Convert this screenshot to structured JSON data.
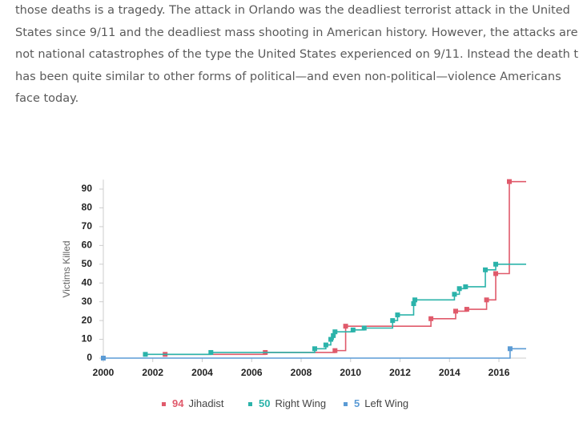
{
  "paragraph": [
    "those deaths is a tragedy. The attack in Orlando was the deadliest terrorist attack in the United",
    "States since 9/11 and the deadliest mass shooting in American history. However, the attacks are",
    "not national catastrophes of the type the United States experienced on 9/11. Instead the death toll",
    "has been quite similar to other forms of political—and even non-political—violence Americans",
    "face today."
  ],
  "chart_data": {
    "type": "step",
    "y_label": "Victims Killed",
    "xlim": [
      2000,
      2017.1
    ],
    "xticks": [
      2000,
      2002,
      2004,
      2006,
      2008,
      2010,
      2012,
      2014,
      2016
    ],
    "ylim": [
      0,
      95
    ],
    "yticks": [
      0,
      10,
      20,
      30,
      40,
      50,
      60,
      70,
      80,
      90
    ],
    "series": [
      {
        "name": "Jihadist",
        "total": 94,
        "color": "#e05a6b",
        "x": [
          2002.5,
          2006.55,
          2009.37,
          2009.8,
          2013.25,
          2014.25,
          2014.7,
          2015.5,
          2015.87,
          2016.42
        ],
        "values": [
          2,
          3,
          4,
          17,
          21,
          25,
          26,
          31,
          45,
          94
        ]
      },
      {
        "name": "Right Wing",
        "total": 50,
        "color": "#2bb3aa",
        "x": [
          2001.7,
          2004.35,
          2008.55,
          2009.0,
          2009.2,
          2009.3,
          2009.37,
          2010.1,
          2010.55,
          2011.7,
          2011.9,
          2012.55,
          2012.6,
          2014.2,
          2014.4,
          2014.65,
          2015.45,
          2015.87
        ],
        "values": [
          2,
          3,
          5,
          7,
          10,
          12,
          14,
          15,
          16,
          20,
          23,
          29,
          31,
          34,
          37,
          38,
          47,
          50
        ]
      },
      {
        "name": "Left Wing",
        "total": 5,
        "color": "#5b9bd5",
        "x": [
          2000,
          2016.45
        ],
        "values": [
          0,
          5
        ]
      }
    ]
  }
}
